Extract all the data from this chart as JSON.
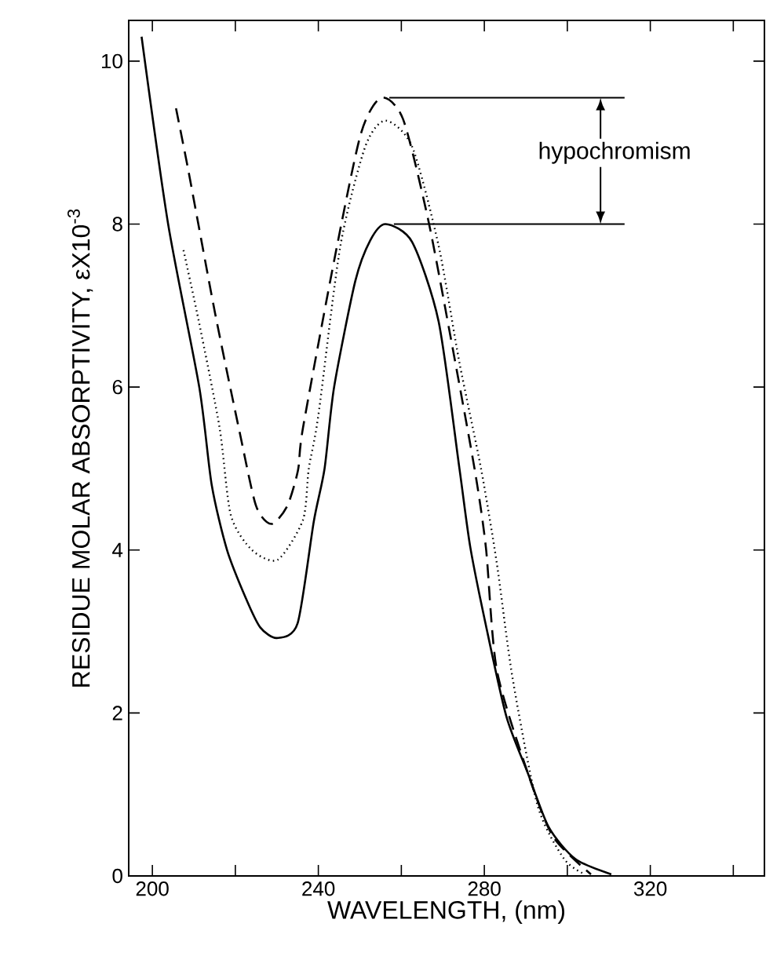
{
  "chart_data": {
    "type": "line",
    "xlabel": "WAVELENGTH, (nm)",
    "ylabel": "RESIDUE MOLAR ABSORPTIVITY, εX10$^{-3}$",
    "xlim": [
      194.3,
      347.5
    ],
    "ylim": [
      0,
      10.5
    ],
    "xticks": [
      200,
      {
        "value": 220,
        "label": null
      },
      240,
      {
        "value": 260,
        "label": null
      },
      280,
      {
        "value": 300,
        "label": null
      },
      320,
      {
        "value": 340,
        "label": null
      }
    ],
    "yticks": [
      0,
      2,
      4,
      6,
      8,
      10
    ],
    "marker": "none",
    "annotations": [
      {
        "text": "hypochromism",
        "x": 308,
        "y": 9.55
      }
    ],
    "ref_lines": [
      {
        "axis": "y",
        "value": 9.55,
        "color": "#000000",
        "line_style": "solid"
      },
      {
        "axis": "y",
        "value": 8.0,
        "color": "#000000",
        "line_style": "solid"
      }
    ],
    "series": [
      {
        "color": "#000000",
        "line_style": "solid",
        "x": [
          197.4,
          203.8,
          211.3,
          214.3,
          218,
          222.6,
          226,
          230,
          235,
          238.9,
          241.5,
          243.8,
          248.9,
          252.5,
          256.2,
          262.6,
          269,
          274,
          276.6,
          280.4,
          285.3,
          290.5,
          295.5,
          301.9,
          310.6
        ],
        "values": [
          10.3,
          8.0,
          6.0,
          4.8,
          4.0,
          3.4,
          3.05,
          2.92,
          3.1,
          4.35,
          5.0,
          6.0,
          7.3,
          7.8,
          8.0,
          7.78,
          6.8,
          5.0,
          4.04,
          3.07,
          1.96,
          1.26,
          0.6,
          0.21,
          0.02
        ]
      },
      {
        "color": "#000000",
        "line_style": "dashed",
        "x": [
          205.7,
          208.7,
          215.1,
          221.1,
          225,
          228.7,
          232.5,
          235.1,
          236.3,
          243.8,
          250.2,
          255.1,
          260.4,
          266.4,
          271.7,
          277.7,
          280.4,
          283,
          290.5,
          296.6,
          305.7
        ],
        "values": [
          9.42,
          8.65,
          6.91,
          5.43,
          4.54,
          4.32,
          4.54,
          4.98,
          5.5,
          7.55,
          9.1,
          9.55,
          9.29,
          8.07,
          6.66,
          4.98,
          4.02,
          2.53,
          1.26,
          0.48,
          0.02
        ]
      },
      {
        "color": "#000000",
        "line_style": "dotted",
        "x": [
          207.5,
          211.3,
          216.2,
          218.9,
          224,
          230.2,
          236.3,
          237.7,
          240,
          245.3,
          251.3,
          256.2,
          262.6,
          269,
          274,
          279.2,
          283,
          286.8,
          292.8,
          299.2,
          304.2
        ],
        "values": [
          7.68,
          6.78,
          5.5,
          4.43,
          4.0,
          3.88,
          4.37,
          5.0,
          5.65,
          7.73,
          8.95,
          9.27,
          8.95,
          7.73,
          6.3,
          5.0,
          3.84,
          2.43,
          0.87,
          0.21,
          0.02
        ]
      }
    ]
  }
}
